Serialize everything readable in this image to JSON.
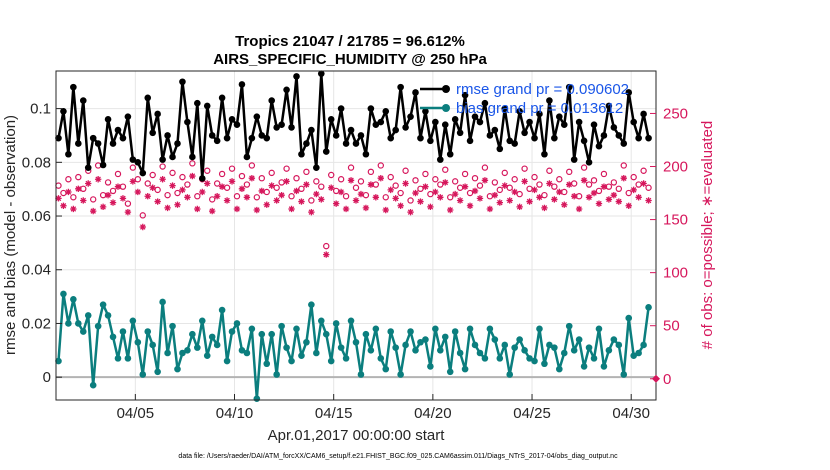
{
  "chart_data": {
    "type": "line",
    "title_line1": "Tropics 21047 / 21785 = 96.612%",
    "title_line2": "AIRS_SPECIFIC_HUMIDITY @ 250 hPa",
    "xlabel": "Apr.01,2017 00:00:00 start",
    "ylabel_left": "rmse and bias (model - observation)",
    "ylabel_right": "# of obs: o=possible; ∗=evaluated",
    "footnote": "data file: /Users/raeder/DAI/ATM_forcXX/CAM6_setup/f.e21.FHIST_BGC.f09_025.CAM6assim.011/Diags_NTrS_2017-04/obs_diag_output.nc",
    "xlim": [
      1.0,
      31.25
    ],
    "ylim_left": [
      -0.0085,
      0.114
    ],
    "ylim_right": [
      -20,
      290
    ],
    "grid": true,
    "x_ticks": [
      5,
      10,
      15,
      20,
      25,
      30
    ],
    "x_tick_labels": [
      "04/05",
      "04/10",
      "04/15",
      "04/20",
      "04/25",
      "04/30"
    ],
    "y_left_ticks": [
      0,
      0.02,
      0.04,
      0.06,
      0.08,
      0.1
    ],
    "y_left_tick_labels": [
      "0",
      "0.02",
      "0.04",
      "0.06",
      "0.08",
      "0.1"
    ],
    "y_right_ticks": [
      0,
      50,
      100,
      150,
      200,
      250
    ],
    "y_right_tick_labels": [
      "0",
      "50",
      "100",
      "150",
      "200",
      "250"
    ],
    "legend_position": "top-right",
    "colors": {
      "rmse": "#000000",
      "bias": "#0b7e7e",
      "obs": "#d6175c",
      "zero_line": "#b3b3b3",
      "grid": "#e6e6e6",
      "legend_text": "#1a56e8"
    },
    "x": [
      1.125,
      1.375,
      1.625,
      1.875,
      2.125,
      2.375,
      2.625,
      2.875,
      3.125,
      3.375,
      3.625,
      3.875,
      4.125,
      4.375,
      4.625,
      4.875,
      5.125,
      5.375,
      5.625,
      5.875,
      6.125,
      6.375,
      6.625,
      6.875,
      7.125,
      7.375,
      7.625,
      7.875,
      8.125,
      8.375,
      8.625,
      8.875,
      9.125,
      9.375,
      9.625,
      9.875,
      10.125,
      10.375,
      10.625,
      10.875,
      11.125,
      11.375,
      11.625,
      11.875,
      12.125,
      12.375,
      12.625,
      12.875,
      13.125,
      13.375,
      13.625,
      13.875,
      14.125,
      14.375,
      14.625,
      14.875,
      15.125,
      15.375,
      15.625,
      15.875,
      16.125,
      16.375,
      16.625,
      16.875,
      17.125,
      17.375,
      17.625,
      17.875,
      18.125,
      18.375,
      18.625,
      18.875,
      19.125,
      19.375,
      19.625,
      19.875,
      20.125,
      20.375,
      20.625,
      20.875,
      21.125,
      21.375,
      21.625,
      21.875,
      22.125,
      22.375,
      22.625,
      22.875,
      23.125,
      23.375,
      23.625,
      23.875,
      24.125,
      24.375,
      24.625,
      24.875,
      25.125,
      25.375,
      25.625,
      25.875,
      26.125,
      26.375,
      26.625,
      26.875,
      27.125,
      27.375,
      27.625,
      27.875,
      28.125,
      28.375,
      28.625,
      28.875,
      29.125,
      29.375,
      29.625,
      29.875,
      30.125,
      30.375,
      30.625,
      30.875
    ],
    "series": [
      {
        "name": "rmse grand pr = 0.090602",
        "axis": "left",
        "marker": "dot",
        "values": [
          0.089,
          0.099,
          0.083,
          0.108,
          0.087,
          0.103,
          0.078,
          0.089,
          0.087,
          0.079,
          0.096,
          0.087,
          0.092,
          0.089,
          0.097,
          0.081,
          0.08,
          0.076,
          0.104,
          0.091,
          0.098,
          0.081,
          0.09,
          0.082,
          0.087,
          0.11,
          0.095,
          0.082,
          0.102,
          0.074,
          0.101,
          0.09,
          0.088,
          0.104,
          0.089,
          0.096,
          0.094,
          0.109,
          0.082,
          0.089,
          0.097,
          0.09,
          0.089,
          0.103,
          0.093,
          0.094,
          0.107,
          0.093,
          0.112,
          0.083,
          0.087,
          0.092,
          0.078,
          0.113,
          0.084,
          0.096,
          0.09,
          0.1,
          0.087,
          0.092,
          0.087,
          0.09,
          0.083,
          0.1,
          0.094,
          0.095,
          0.099,
          0.089,
          0.092,
          0.108,
          0.093,
          0.097,
          0.106,
          0.089,
          0.099,
          0.088,
          0.095,
          0.081,
          0.094,
          0.083,
          0.096,
          0.091,
          0.105,
          0.088,
          0.097,
          0.095,
          0.102,
          0.09,
          0.092,
          0.085,
          0.1,
          0.088,
          0.087,
          0.099,
          0.091,
          0.095,
          0.089,
          0.098,
          0.083,
          0.103,
          0.089,
          0.097,
          0.094,
          0.108,
          0.081,
          0.095,
          0.088,
          0.08,
          0.094,
          0.086,
          0.09,
          0.101,
          0.093,
          0.09,
          0.087,
          0.106,
          0.095,
          0.089,
          0.098,
          0.089
        ]
      },
      {
        "name": "bias grand pr = 0.013612",
        "axis": "left",
        "marker": "dot",
        "values": [
          0.006,
          0.031,
          0.02,
          0.029,
          0.02,
          0.017,
          0.023,
          -0.003,
          0.019,
          0.027,
          0.023,
          0.015,
          0.007,
          0.017,
          0.007,
          0.021,
          0.013,
          0.001,
          0.017,
          0.012,
          0.002,
          0.028,
          0.009,
          0.019,
          0.003,
          0.009,
          0.01,
          0.016,
          0.011,
          0.021,
          0.008,
          0.015,
          0.012,
          0.025,
          0.006,
          0.017,
          0.02,
          0.01,
          0.009,
          0.018,
          -0.008,
          0.016,
          0.005,
          0.016,
          0.001,
          0.019,
          0.011,
          0.006,
          0.018,
          0.008,
          0.013,
          0.027,
          0.009,
          0.021,
          0.016,
          0.006,
          0.02,
          0.011,
          0.007,
          0.021,
          0.013,
          0.001,
          0.016,
          0.01,
          0.018,
          0.007,
          0.003,
          0.017,
          0.011,
          0.001,
          0.012,
          0.017,
          0.01,
          0.013,
          0.014,
          0.004,
          0.018,
          0.01,
          0.015,
          0.002,
          0.017,
          0.009,
          0.003,
          0.018,
          0.012,
          0.009,
          0.007,
          0.018,
          0.014,
          0.007,
          0.012,
          0.001,
          0.011,
          0.014,
          0.01,
          0.007,
          0.006,
          0.018,
          0.005,
          0.012,
          0.011,
          0.003,
          0.009,
          0.019,
          0.01,
          0.014,
          0.004,
          0.011,
          0.007,
          0.018,
          0.004,
          0.01,
          0.014,
          0.012,
          0.001,
          0.022,
          0.008,
          0.009,
          0.012,
          0.026
        ]
      },
      {
        "name": "# of obs possible",
        "axis": "right",
        "marker": "circle",
        "values": [
          182,
          175,
          188,
          171,
          190,
          179,
          196,
          169,
          201,
          173,
          185,
          177,
          193,
          181,
          165,
          199,
          188,
          154,
          184,
          192,
          178,
          200,
          173,
          194,
          175,
          190,
          183,
          203,
          172,
          188,
          196,
          169,
          184,
          193,
          180,
          198,
          172,
          191,
          183,
          201,
          171,
          189,
          176,
          194,
          180,
          185,
          198,
          172,
          189,
          179,
          195,
          168,
          186,
          181,
          125,
          192,
          177,
          188,
          172,
          199,
          180,
          186,
          173,
          195,
          183,
          201,
          171,
          190,
          182,
          175,
          196,
          168,
          187,
          179,
          193,
          174,
          188,
          183,
          197,
          171,
          186,
          180,
          193,
          175,
          189,
          182,
          199,
          172,
          185,
          178,
          194,
          180,
          188,
          174,
          198,
          179,
          190,
          183,
          173,
          196,
          181,
          188,
          176,
          195,
          184,
          172,
          199,
          183,
          187,
          177,
          193,
          181,
          185,
          179,
          201,
          175,
          190,
          183,
          196,
          180
        ]
      },
      {
        "name": "# of obs evaluated",
        "axis": "right",
        "marker": "star",
        "values": [
          170,
          163,
          176,
          160,
          179,
          168,
          184,
          158,
          188,
          162,
          173,
          166,
          181,
          170,
          157,
          186,
          176,
          143,
          172,
          180,
          167,
          188,
          161,
          182,
          164,
          178,
          171,
          191,
          160,
          176,
          184,
          158,
          172,
          181,
          168,
          186,
          160,
          179,
          171,
          189,
          159,
          177,
          164,
          182,
          168,
          173,
          186,
          160,
          177,
          167,
          183,
          157,
          174,
          169,
          117,
          180,
          165,
          176,
          160,
          187,
          168,
          174,
          161,
          183,
          171,
          189,
          159,
          178,
          170,
          163,
          184,
          157,
          175,
          167,
          181,
          162,
          176,
          171,
          185,
          159,
          174,
          168,
          181,
          163,
          177,
          170,
          187,
          160,
          173,
          166,
          182,
          168,
          176,
          162,
          186,
          167,
          178,
          171,
          161,
          184,
          169,
          176,
          164,
          183,
          172,
          160,
          187,
          171,
          175,
          165,
          181,
          169,
          173,
          167,
          189,
          163,
          178,
          171,
          184,
          168
        ]
      }
    ]
  }
}
